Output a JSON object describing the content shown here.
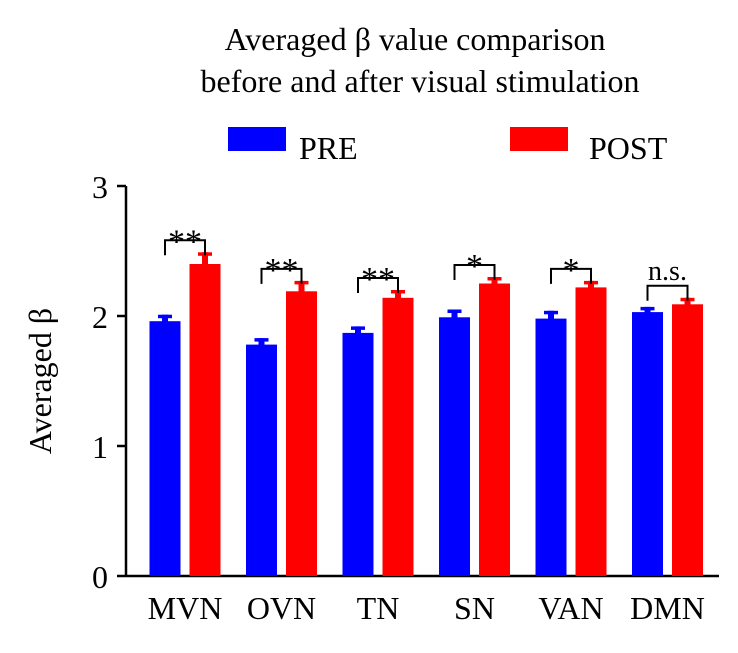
{
  "chart_data": {
    "type": "bar",
    "title_lines": [
      "Averaged β value comparison",
      "before and after visual stimulation"
    ],
    "ylabel": "Averaged β",
    "xlabel": "",
    "ylim": [
      0,
      3
    ],
    "yticks": [
      0,
      1,
      2,
      3
    ],
    "categories": [
      "MVN",
      "OVN",
      "TN",
      "SN",
      "VAN",
      "DMN"
    ],
    "series": [
      {
        "name": "PRE",
        "color": "#0000ff",
        "values": [
          1.96,
          1.78,
          1.87,
          1.99,
          1.98,
          2.03
        ],
        "errors": [
          0.05,
          0.05,
          0.05,
          0.06,
          0.06,
          0.04
        ]
      },
      {
        "name": "POST",
        "color": "#ff0000",
        "values": [
          2.4,
          2.19,
          2.14,
          2.25,
          2.22,
          2.09
        ],
        "errors": [
          0.09,
          0.08,
          0.06,
          0.05,
          0.05,
          0.05
        ]
      }
    ],
    "significance": [
      "**",
      "**",
      "**",
      "*",
      "*",
      "n.s."
    ],
    "legend_position": "top",
    "grid": false
  }
}
